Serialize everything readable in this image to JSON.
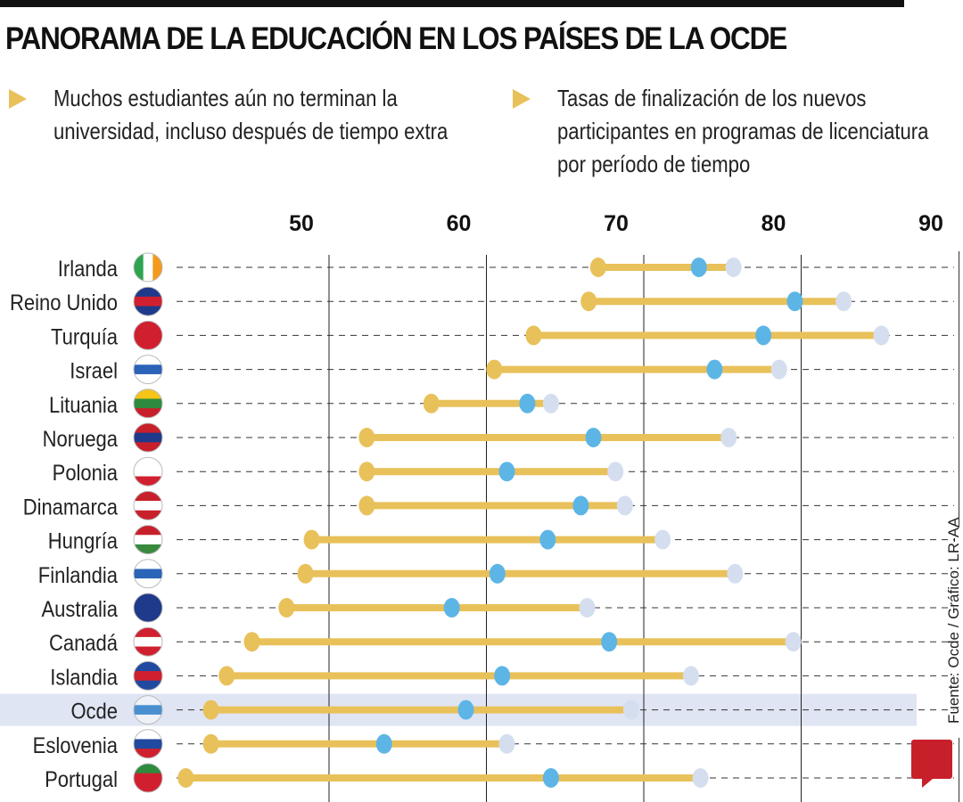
{
  "title": "PANORAMA DE LA EDUCACIÓN EN LOS PAÍSES DE LA OCDE",
  "subtitle_left": [
    "Muchos estudiantes aún no terminan la",
    "universidad, incluso después de tiempo extra"
  ],
  "subtitle_right": [
    "Tasas de finalización de los nuevos",
    "participantes en programas de licenciatura",
    "por período de tiempo"
  ],
  "source": "Fuente: Ocde / Gráfico: LR-AA",
  "logo": "LR",
  "colors": {
    "start": "#E9C15A",
    "middle": "#5DB5E6",
    "end": "#D5DEEF",
    "highlight": "#DFE5F3",
    "bar": "#E9C15A"
  },
  "chart_data": {
    "type": "dumbbell",
    "xlim": [
      40,
      90
    ],
    "xticks": [
      50,
      60,
      70,
      80,
      90
    ],
    "grid": true,
    "highlight": "Ocde",
    "categories": [
      "Irlanda",
      "Reino Unido",
      "Turquía",
      "Israel",
      "Lituania",
      "Noruega",
      "Polonia",
      "Dinamarca",
      "Hungría",
      "Finlandia",
      "Australia",
      "Canadá",
      "Islandia",
      "Ocde",
      "Eslovenia",
      "Portugal"
    ],
    "flags": [
      "ireland-flag-icon",
      "uk-flag-icon",
      "turkey-flag-icon",
      "israel-flag-icon",
      "lithuania-flag-icon",
      "norway-flag-icon",
      "poland-flag-icon",
      "denmark-flag-icon",
      "hungary-flag-icon",
      "finland-flag-icon",
      "australia-flag-icon",
      "canada-flag-icon",
      "iceland-flag-icon",
      "oecd-logo-icon",
      "slovenia-flag-icon",
      "portugal-flag-icon"
    ],
    "series": [
      {
        "values": [
          67.1,
          66.5,
          63.0,
          60.5,
          56.5,
          52.4,
          52.4,
          52.4,
          48.9,
          48.5,
          47.3,
          45.1,
          43.5,
          42.5,
          42.5,
          40.9
        ]
      },
      {
        "values": [
          73.5,
          79.6,
          77.6,
          74.5,
          62.6,
          66.8,
          61.3,
          66.0,
          63.9,
          60.7,
          57.8,
          67.8,
          61.0,
          58.7,
          53.5,
          64.1
        ]
      },
      {
        "values": [
          75.7,
          82.7,
          85.1,
          78.6,
          64.1,
          75.4,
          68.2,
          68.8,
          71.2,
          75.8,
          66.4,
          79.5,
          73.0,
          69.2,
          61.3,
          73.6
        ]
      }
    ]
  }
}
